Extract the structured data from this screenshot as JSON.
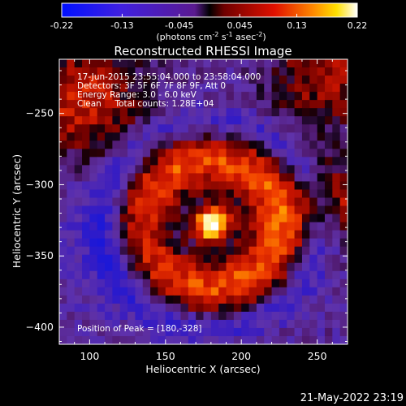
{
  "chart_data": {
    "type": "heatmap",
    "title": "Reconstructed RHESSI Image",
    "xlabel": "Heliocentric X (arcsec)",
    "ylabel": "Heliocentric Y (arcsec)",
    "xlim": [
      80,
      270
    ],
    "ylim": [
      -412,
      -212
    ],
    "x_ticks": [
      100,
      150,
      200,
      250
    ],
    "y_ticks": [
      -250,
      -300,
      -350,
      -400
    ],
    "colorbar": {
      "ticks": [
        "-0.22",
        "-0.13",
        "-0.045",
        "0.045",
        "0.13",
        "0.22"
      ],
      "tick_values": [
        -0.22,
        -0.13,
        -0.045,
        0.045,
        0.13,
        0.22
      ],
      "range": [
        -0.22,
        0.22
      ],
      "unit_parts": [
        "(photons cm",
        "-2",
        " s",
        "-1",
        " asec",
        "-2",
        ")"
      ]
    },
    "annotations": [
      "17-Jun-2015 23:55:04.000 to 23:58:04.000",
      "Detectors: 3F 5F 6F 7F 8F 9F, Att 0",
      "Energy Range: 3.0 - 6.0 keV",
      "Clean     Total counts: 1.28E+04"
    ],
    "peak_label": "Position of Peak = [180,-328]",
    "peak": {
      "x": 180,
      "y": -328
    },
    "timestamp": "21-May-2022 23:19"
  }
}
